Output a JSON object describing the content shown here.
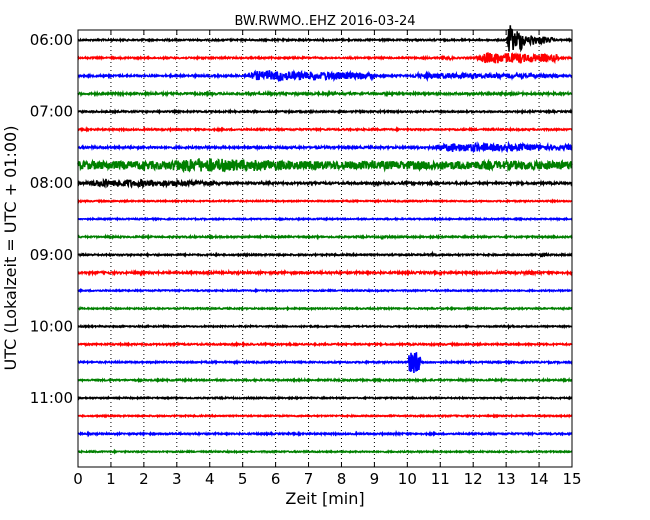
{
  "chart_data": {
    "type": "line",
    "title": "BW.RWMO..EHZ 2016-03-24",
    "xlabel": "Zeit  [min]",
    "ylabel": "UTC (Lokalzeit = UTC + 01:00)",
    "xlim": [
      0,
      15
    ],
    "x_ticks": [
      "0",
      "1",
      "2",
      "3",
      "4",
      "5",
      "6",
      "7",
      "8",
      "9",
      "10",
      "11",
      "12",
      "13",
      "14",
      "15"
    ],
    "y_ticks": [
      "06:00",
      "07:00",
      "08:00",
      "09:00",
      "10:00",
      "11:00"
    ],
    "grid": "vertical dotted",
    "row_minutes": 15,
    "colors": [
      "#000000",
      "#ff0000",
      "#0000ff",
      "#008000"
    ],
    "rows": [
      {
        "start": "06:00",
        "color": "#000000",
        "noise": 0.06,
        "events": [
          {
            "start": 13.0,
            "end": 13.6,
            "amp": 1.4
          },
          {
            "start": 13.6,
            "end": 14.4,
            "amp": 0.5
          }
        ]
      },
      {
        "start": "06:15",
        "color": "#ff0000",
        "noise": 0.06,
        "events": [
          {
            "start": 11.0,
            "end": 11.4,
            "amp": 0.25
          },
          {
            "start": 12.0,
            "end": 14.6,
            "amp": 0.6
          }
        ]
      },
      {
        "start": "06:30",
        "color": "#0000ff",
        "noise": 0.07,
        "events": [
          {
            "start": 4.9,
            "end": 9.0,
            "amp": 0.55
          },
          {
            "start": 9.8,
            "end": 14.6,
            "amp": 0.3
          }
        ]
      },
      {
        "start": "06:45",
        "color": "#008000",
        "noise": 0.08,
        "events": []
      },
      {
        "start": "07:00",
        "color": "#000000",
        "noise": 0.06,
        "events": []
      },
      {
        "start": "07:15",
        "color": "#ff0000",
        "noise": 0.06,
        "events": []
      },
      {
        "start": "07:30",
        "color": "#0000ff",
        "noise": 0.08,
        "events": [
          {
            "start": 10.5,
            "end": 15.0,
            "amp": 0.45
          }
        ]
      },
      {
        "start": "07:45",
        "color": "#008000",
        "noise": 0.35,
        "events": [
          {
            "start": 2.3,
            "end": 7.5,
            "amp": 0.7
          }
        ]
      },
      {
        "start": "08:00",
        "color": "#000000",
        "noise": 0.08,
        "events": [
          {
            "start": 0.0,
            "end": 4.3,
            "amp": 0.4
          }
        ]
      },
      {
        "start": "08:15",
        "color": "#ff0000",
        "noise": 0.05,
        "events": []
      },
      {
        "start": "08:30",
        "color": "#0000ff",
        "noise": 0.05,
        "events": []
      },
      {
        "start": "08:45",
        "color": "#008000",
        "noise": 0.06,
        "events": [
          {
            "start": 9.2,
            "end": 9.4,
            "amp": 0.2
          }
        ]
      },
      {
        "start": "09:00",
        "color": "#000000",
        "noise": 0.06,
        "events": [
          {
            "start": 10.7,
            "end": 10.9,
            "amp": 0.25
          },
          {
            "start": 14.0,
            "end": 14.3,
            "amp": 0.2
          }
        ]
      },
      {
        "start": "09:15",
        "color": "#ff0000",
        "noise": 0.08,
        "events": [
          {
            "start": 13.5,
            "end": 13.9,
            "amp": 0.2
          }
        ]
      },
      {
        "start": "09:30",
        "color": "#0000ff",
        "noise": 0.05,
        "events": []
      },
      {
        "start": "09:45",
        "color": "#008000",
        "noise": 0.05,
        "events": []
      },
      {
        "start": "10:00",
        "color": "#000000",
        "noise": 0.05,
        "events": [
          {
            "start": 13.0,
            "end": 13.2,
            "amp": 0.2
          }
        ]
      },
      {
        "start": "10:15",
        "color": "#ff0000",
        "noise": 0.06,
        "events": []
      },
      {
        "start": "10:30",
        "color": "#0000ff",
        "noise": 0.06,
        "events": [
          {
            "start": 10.0,
            "end": 10.4,
            "amp": 1.5
          }
        ]
      },
      {
        "start": "10:45",
        "color": "#008000",
        "noise": 0.06,
        "events": []
      },
      {
        "start": "11:00",
        "color": "#000000",
        "noise": 0.05,
        "events": []
      },
      {
        "start": "11:15",
        "color": "#ff0000",
        "noise": 0.05,
        "events": []
      },
      {
        "start": "11:30",
        "color": "#0000ff",
        "noise": 0.06,
        "events": [
          {
            "start": 9.6,
            "end": 9.9,
            "amp": 0.15
          }
        ]
      },
      {
        "start": "11:45",
        "color": "#008000",
        "noise": 0.05,
        "events": []
      }
    ]
  }
}
